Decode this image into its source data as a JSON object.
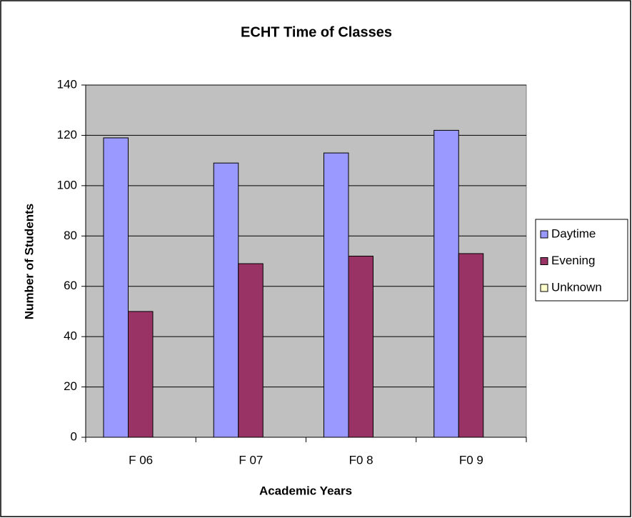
{
  "chart_data": {
    "type": "bar",
    "title": "ECHT Time of Classes",
    "x_label": "Academic Years",
    "y_label": "Number of Students",
    "categories": [
      "F 06",
      "F 07",
      "F0 8",
      "F0 9"
    ],
    "series": [
      {
        "name": "Daytime",
        "color": "#9999ff",
        "values": [
          119,
          109,
          113,
          122
        ]
      },
      {
        "name": "Evening",
        "color": "#993366",
        "values": [
          50,
          69,
          72,
          73
        ]
      },
      {
        "name": "Unknown",
        "color": "#ffffcc",
        "values": [
          0,
          0,
          0,
          0
        ]
      }
    ],
    "ylim": [
      0,
      140
    ],
    "yticks": [
      0,
      20,
      40,
      60,
      80,
      100,
      120,
      140
    ],
    "grid": true,
    "legend": "right"
  }
}
